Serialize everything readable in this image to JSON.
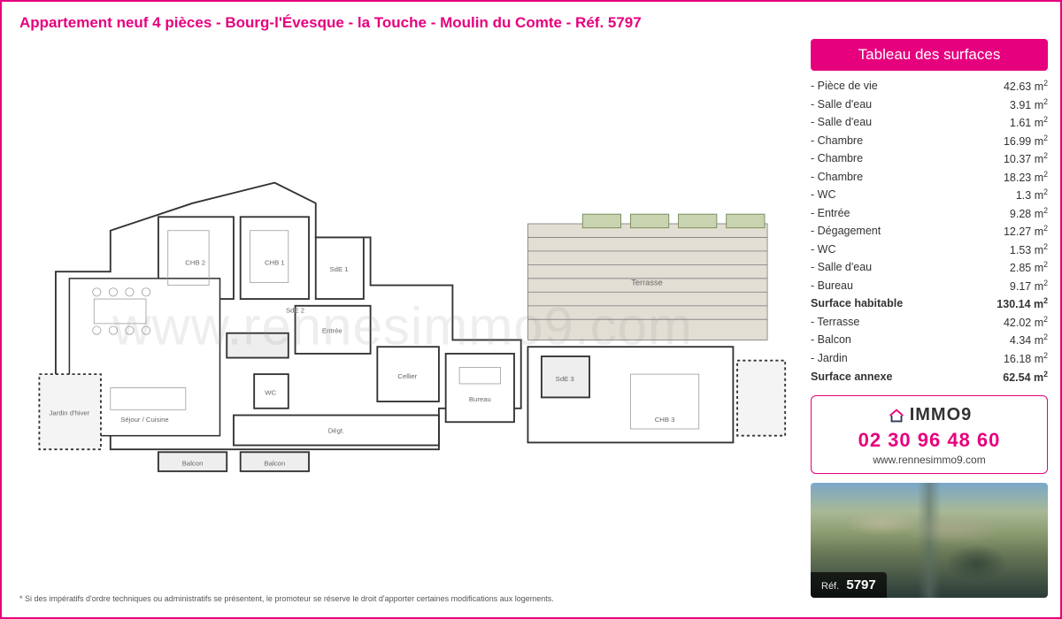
{
  "title": "Appartement neuf 4 pièces - Bourg-l'Évesque - la Touche - Moulin du Comte - Réf. 5797",
  "watermark": "www.rennesimmo9.com",
  "disclaimer": "* Si des impératifs d'ordre techniques ou administratifs se présentent, le promoteur se réserve le droit d'apporter certaines modifications aux logements.",
  "surfaces": {
    "header": "Tableau des surfaces",
    "unit": "m²",
    "rooms": [
      {
        "label": "Pièce de vie",
        "value": "42.63"
      },
      {
        "label": "Salle d'eau",
        "value": "3.91"
      },
      {
        "label": "Salle d'eau",
        "value": "1.61"
      },
      {
        "label": "Chambre",
        "value": "16.99"
      },
      {
        "label": "Chambre",
        "value": "10.37"
      },
      {
        "label": "Chambre",
        "value": "18.23"
      },
      {
        "label": "WC",
        "value": "1.3"
      },
      {
        "label": "Entrée",
        "value": "9.28"
      },
      {
        "label": "Dégagement",
        "value": "12.27"
      },
      {
        "label": "WC",
        "value": "1.53"
      },
      {
        "label": "Salle d'eau",
        "value": "2.85"
      },
      {
        "label": "Bureau",
        "value": "9.17"
      }
    ],
    "subtotal1": {
      "label": "Surface habitable",
      "value": "130.14"
    },
    "annex": [
      {
        "label": "Terrasse",
        "value": "42.02"
      },
      {
        "label": "Balcon",
        "value": "4.34"
      },
      {
        "label": "Jardin",
        "value": "16.18"
      }
    ],
    "subtotal2": {
      "label": "Surface annexe",
      "value": "62.54"
    }
  },
  "contact": {
    "brand": "IMMO9",
    "phone": "02 30 96 48 60",
    "website": "www.rennesimmo9.com"
  },
  "ref": {
    "label": "Réf.",
    "number": "5797"
  },
  "plan": {
    "stroke": "#333",
    "fill_terrace": "#d8d4cc",
    "fill_room": "#ffffff",
    "rooms": {
      "sejour": "Séjour / Cuisine",
      "chb1": "CHB 1",
      "chb2": "CHB 2",
      "chb3": "CHB 3",
      "sde1": "SdE 1",
      "sde2": "SdE 2",
      "sde3": "SdE 3",
      "entree": "Entrée",
      "degt": "Dégt.",
      "wc": "WC",
      "bureau": "Bureau",
      "cellier": "Cellier",
      "terrasse": "Terrasse",
      "balcon": "Balcon",
      "jardin": "Jardin d'hiver"
    }
  },
  "colors": {
    "accent": "#e6007e",
    "text": "#333333",
    "border": "#e6007e"
  }
}
